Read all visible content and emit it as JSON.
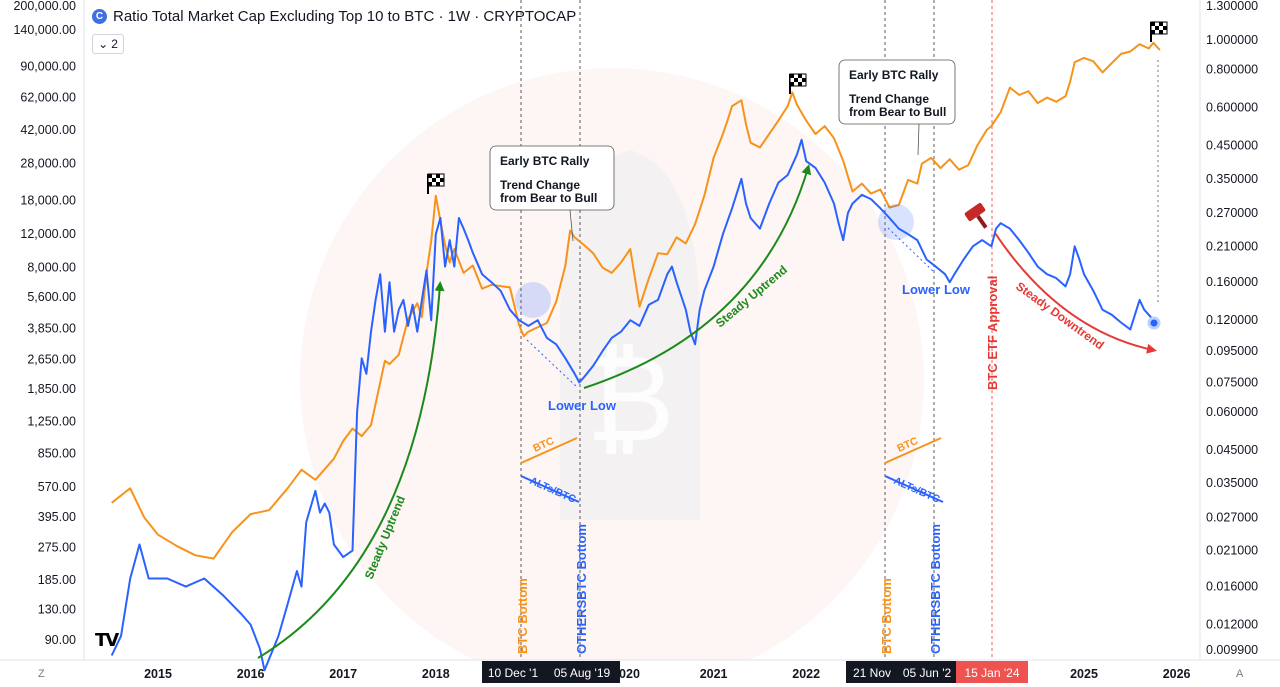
{
  "header": {
    "title": "Ratio Total Market Cap Excluding Top 10 to BTC · 1W · CRYPTOCAP",
    "collapse_label": "2",
    "icon_glyph": "C"
  },
  "corner_left": "Z",
  "corner_right": "A",
  "logo_text": "TV",
  "colors": {
    "btc": "#f7931a",
    "alts": "#2962ff",
    "green": "#1b8a1b",
    "red": "#e53935",
    "etf_line": "#e53935"
  },
  "chart_data": {
    "type": "line",
    "title": "Ratio Total Market Cap Excluding Top 10 to BTC · 1W · CRYPTOCAP",
    "x_ticks": [
      "2015",
      "2016",
      "2017",
      "2018",
      "2020",
      "2021",
      "2022",
      "2025",
      "2026"
    ],
    "left_axis_ticks": [
      "200,000.00",
      "140,000.00",
      "90,000.00",
      "62,000.00",
      "42,000.00",
      "28,000.00",
      "18,000.00",
      "12,000.00",
      "8,000.00",
      "5,600.00",
      "3,850.00",
      "2,650.00",
      "1,850.00",
      "1,250.00",
      "850.00",
      "570.00",
      "395.00",
      "275.00",
      "185.00",
      "130.00",
      "90.00"
    ],
    "right_axis_ticks": [
      "1.300000",
      "1.000000",
      "0.800000",
      "0.600000",
      "0.450000",
      "0.350000",
      "0.270000",
      "0.210000",
      "0.160000",
      "0.120000",
      "0.095000",
      "0.075000",
      "0.060000",
      "0.045000",
      "0.035000",
      "0.027000",
      "0.021000",
      "0.016000",
      "0.012000",
      "0.009900"
    ],
    "time_labels": [
      {
        "text": "10 Dec '1",
        "style": "dark"
      },
      {
        "text": "05 Aug '19",
        "style": "dark"
      },
      {
        "text": "21 Nov",
        "style": "dark"
      },
      {
        "text": "05 Jun '2",
        "style": "dark"
      },
      {
        "text": "15 Jan '24",
        "style": "red"
      }
    ],
    "series": [
      {
        "name": "BTC",
        "axis": "left",
        "points": [
          [
            2014.5,
            470
          ],
          [
            2014.7,
            560
          ],
          [
            2014.85,
            395
          ],
          [
            2015.0,
            320
          ],
          [
            2015.2,
            280
          ],
          [
            2015.4,
            250
          ],
          [
            2015.6,
            240
          ],
          [
            2015.8,
            330
          ],
          [
            2016.0,
            410
          ],
          [
            2016.2,
            430
          ],
          [
            2016.4,
            560
          ],
          [
            2016.55,
            700
          ],
          [
            2016.7,
            620
          ],
          [
            2016.9,
            800
          ],
          [
            2017.0,
            990
          ],
          [
            2017.1,
            1150
          ],
          [
            2017.2,
            1050
          ],
          [
            2017.3,
            1200
          ],
          [
            2017.4,
            2000
          ],
          [
            2017.45,
            2600
          ],
          [
            2017.5,
            2500
          ],
          [
            2017.6,
            2800
          ],
          [
            2017.7,
            4300
          ],
          [
            2017.8,
            5200
          ],
          [
            2017.85,
            4400
          ],
          [
            2017.9,
            7500
          ],
          [
            2017.95,
            11000
          ],
          [
            2018.0,
            19000
          ],
          [
            2018.05,
            14000
          ],
          [
            2018.1,
            10500
          ],
          [
            2018.15,
            8500
          ],
          [
            2018.2,
            10000
          ],
          [
            2018.3,
            7500
          ],
          [
            2018.4,
            8200
          ],
          [
            2018.5,
            6200
          ],
          [
            2018.6,
            6500
          ],
          [
            2018.7,
            6400
          ],
          [
            2018.8,
            6300
          ],
          [
            2018.9,
            4000
          ],
          [
            2018.95,
            3500
          ],
          [
            2019.0,
            3700
          ],
          [
            2019.2,
            4100
          ],
          [
            2019.3,
            5300
          ],
          [
            2019.4,
            8200
          ],
          [
            2019.45,
            12500
          ],
          [
            2019.5,
            11500
          ],
          [
            2019.6,
            10500
          ],
          [
            2019.7,
            9500
          ],
          [
            2019.8,
            8000
          ],
          [
            2019.9,
            7500
          ],
          [
            2020.0,
            8500
          ],
          [
            2020.1,
            10000
          ],
          [
            2020.2,
            5000
          ],
          [
            2020.3,
            7000
          ],
          [
            2020.4,
            9500
          ],
          [
            2020.5,
            9400
          ],
          [
            2020.6,
            11500
          ],
          [
            2020.7,
            10700
          ],
          [
            2020.8,
            13500
          ],
          [
            2020.9,
            19000
          ],
          [
            2021.0,
            30000
          ],
          [
            2021.1,
            40000
          ],
          [
            2021.15,
            47000
          ],
          [
            2021.2,
            56000
          ],
          [
            2021.3,
            60000
          ],
          [
            2021.35,
            45000
          ],
          [
            2021.4,
            36000
          ],
          [
            2021.5,
            34000
          ],
          [
            2021.6,
            40000
          ],
          [
            2021.7,
            47000
          ],
          [
            2021.8,
            56000
          ],
          [
            2021.85,
            66000
          ],
          [
            2021.9,
            57000
          ],
          [
            2022.0,
            47000
          ],
          [
            2022.1,
            40000
          ],
          [
            2022.2,
            44000
          ],
          [
            2022.3,
            38000
          ],
          [
            2022.4,
            29000
          ],
          [
            2022.5,
            20000
          ],
          [
            2022.6,
            22000
          ],
          [
            2022.7,
            19500
          ],
          [
            2022.8,
            20500
          ],
          [
            2022.9,
            16500
          ],
          [
            2023.0,
            17000
          ],
          [
            2023.1,
            23000
          ],
          [
            2023.2,
            22000
          ],
          [
            2023.25,
            28000
          ],
          [
            2023.35,
            30000
          ],
          [
            2023.45,
            26500
          ],
          [
            2023.55,
            29500
          ],
          [
            2023.65,
            26000
          ],
          [
            2023.75,
            27500
          ],
          [
            2023.85,
            35000
          ],
          [
            2023.95,
            42000
          ],
          [
            2024.0,
            44000
          ],
          [
            2024.1,
            52000
          ],
          [
            2024.2,
            70000
          ],
          [
            2024.3,
            64000
          ],
          [
            2024.4,
            67000
          ],
          [
            2024.5,
            58000
          ],
          [
            2024.6,
            62000
          ],
          [
            2024.7,
            59000
          ],
          [
            2024.8,
            63000
          ],
          [
            2024.85,
            75000
          ],
          [
            2024.9,
            95000
          ],
          [
            2025.0,
            100000
          ],
          [
            2025.1,
            96000
          ],
          [
            2025.2,
            84000
          ],
          [
            2025.3,
            94000
          ],
          [
            2025.4,
            105000
          ],
          [
            2025.5,
            108000
          ],
          [
            2025.6,
            118000
          ],
          [
            2025.7,
            112000
          ],
          [
            2025.75,
            120000
          ],
          [
            2025.82,
            110000
          ]
        ]
      },
      {
        "name": "ALTs/BTC",
        "axis": "right",
        "points": [
          [
            2014.5,
            0.0095
          ],
          [
            2014.6,
            0.011
          ],
          [
            2014.7,
            0.017
          ],
          [
            2014.8,
            0.022
          ],
          [
            2014.9,
            0.017
          ],
          [
            2015.1,
            0.017
          ],
          [
            2015.3,
            0.016
          ],
          [
            2015.5,
            0.017
          ],
          [
            2015.7,
            0.015
          ],
          [
            2015.9,
            0.013
          ],
          [
            2016.0,
            0.012
          ],
          [
            2016.1,
            0.01
          ],
          [
            2016.15,
            0.0085
          ],
          [
            2016.3,
            0.011
          ],
          [
            2016.4,
            0.014
          ],
          [
            2016.5,
            0.018
          ],
          [
            2016.55,
            0.016
          ],
          [
            2016.6,
            0.026
          ],
          [
            2016.7,
            0.033
          ],
          [
            2016.75,
            0.028
          ],
          [
            2016.8,
            0.03
          ],
          [
            2016.85,
            0.028
          ],
          [
            2016.9,
            0.022
          ],
          [
            2017.0,
            0.02
          ],
          [
            2017.1,
            0.021
          ],
          [
            2017.15,
            0.06
          ],
          [
            2017.2,
            0.09
          ],
          [
            2017.25,
            0.08
          ],
          [
            2017.3,
            0.11
          ],
          [
            2017.35,
            0.14
          ],
          [
            2017.4,
            0.17
          ],
          [
            2017.45,
            0.11
          ],
          [
            2017.5,
            0.16
          ],
          [
            2017.55,
            0.11
          ],
          [
            2017.6,
            0.13
          ],
          [
            2017.65,
            0.14
          ],
          [
            2017.7,
            0.115
          ],
          [
            2017.75,
            0.135
          ],
          [
            2017.8,
            0.11
          ],
          [
            2017.85,
            0.14
          ],
          [
            2017.9,
            0.175
          ],
          [
            2017.95,
            0.12
          ],
          [
            2018.0,
            0.23
          ],
          [
            2018.05,
            0.26
          ],
          [
            2018.1,
            0.18
          ],
          [
            2018.15,
            0.22
          ],
          [
            2018.2,
            0.18
          ],
          [
            2018.25,
            0.26
          ],
          [
            2018.3,
            0.24
          ],
          [
            2018.35,
            0.22
          ],
          [
            2018.4,
            0.2
          ],
          [
            2018.5,
            0.17
          ],
          [
            2018.6,
            0.16
          ],
          [
            2018.7,
            0.15
          ],
          [
            2018.8,
            0.13
          ],
          [
            2018.9,
            0.12
          ],
          [
            2019.0,
            0.115
          ],
          [
            2019.1,
            0.12
          ],
          [
            2019.2,
            0.105
          ],
          [
            2019.3,
            0.1
          ],
          [
            2019.4,
            0.09
          ],
          [
            2019.5,
            0.08
          ],
          [
            2019.55,
            0.075
          ],
          [
            2019.6,
            0.078
          ],
          [
            2019.7,
            0.085
          ],
          [
            2019.8,
            0.095
          ],
          [
            2019.9,
            0.105
          ],
          [
            2020.0,
            0.11
          ],
          [
            2020.1,
            0.12
          ],
          [
            2020.2,
            0.115
          ],
          [
            2020.3,
            0.135
          ],
          [
            2020.4,
            0.14
          ],
          [
            2020.5,
            0.17
          ],
          [
            2020.55,
            0.18
          ],
          [
            2020.6,
            0.16
          ],
          [
            2020.7,
            0.13
          ],
          [
            2020.75,
            0.11
          ],
          [
            2020.8,
            0.1
          ],
          [
            2020.85,
            0.13
          ],
          [
            2020.9,
            0.15
          ],
          [
            2021.0,
            0.18
          ],
          [
            2021.1,
            0.23
          ],
          [
            2021.2,
            0.28
          ],
          [
            2021.3,
            0.35
          ],
          [
            2021.35,
            0.29
          ],
          [
            2021.4,
            0.26
          ],
          [
            2021.5,
            0.24
          ],
          [
            2021.6,
            0.29
          ],
          [
            2021.7,
            0.34
          ],
          [
            2021.8,
            0.36
          ],
          [
            2021.9,
            0.42
          ],
          [
            2021.95,
            0.47
          ],
          [
            2022.0,
            0.4
          ],
          [
            2022.1,
            0.38
          ],
          [
            2022.2,
            0.34
          ],
          [
            2022.3,
            0.29
          ],
          [
            2022.35,
            0.25
          ],
          [
            2022.4,
            0.22
          ],
          [
            2022.45,
            0.27
          ],
          [
            2022.5,
            0.29
          ],
          [
            2022.6,
            0.31
          ],
          [
            2022.7,
            0.3
          ],
          [
            2022.8,
            0.28
          ],
          [
            2022.9,
            0.26
          ],
          [
            2023.0,
            0.24
          ],
          [
            2023.1,
            0.23
          ],
          [
            2023.2,
            0.22
          ],
          [
            2023.3,
            0.19
          ],
          [
            2023.4,
            0.18
          ],
          [
            2023.5,
            0.17
          ],
          [
            2023.55,
            0.16
          ],
          [
            2023.6,
            0.17
          ],
          [
            2023.7,
            0.19
          ],
          [
            2023.8,
            0.21
          ],
          [
            2023.9,
            0.22
          ],
          [
            2024.0,
            0.21
          ],
          [
            2024.05,
            0.24
          ],
          [
            2024.1,
            0.25
          ],
          [
            2024.2,
            0.24
          ],
          [
            2024.3,
            0.22
          ],
          [
            2024.4,
            0.2
          ],
          [
            2024.5,
            0.18
          ],
          [
            2024.6,
            0.17
          ],
          [
            2024.7,
            0.165
          ],
          [
            2024.8,
            0.155
          ],
          [
            2024.85,
            0.17
          ],
          [
            2024.9,
            0.21
          ],
          [
            2024.95,
            0.19
          ],
          [
            2025.0,
            0.17
          ],
          [
            2025.1,
            0.15
          ],
          [
            2025.2,
            0.13
          ],
          [
            2025.3,
            0.125
          ],
          [
            2025.4,
            0.118
          ],
          [
            2025.5,
            0.112
          ],
          [
            2025.55,
            0.125
          ],
          [
            2025.6,
            0.14
          ],
          [
            2025.65,
            0.13
          ],
          [
            2025.7,
            0.125
          ],
          [
            2025.75,
            0.12
          ]
        ]
      }
    ],
    "annotations": [
      {
        "kind": "callout",
        "title": "Early BTC Rally",
        "body": [
          "Trend Change",
          "from Bear to Bull"
        ]
      },
      {
        "kind": "callout",
        "title": "Early BTC Rally",
        "body": [
          "Trend Change",
          "from Bear to Bull"
        ]
      },
      {
        "kind": "label",
        "text": "Lower Low",
        "color": "alts"
      },
      {
        "kind": "label",
        "text": "Lower Low",
        "color": "alts"
      },
      {
        "kind": "curve",
        "text": "Steady Uptrend",
        "color": "green"
      },
      {
        "kind": "curve",
        "text": "Steady Uptrend",
        "color": "green"
      },
      {
        "kind": "curve",
        "text": "Steady Downtrend",
        "color": "red"
      },
      {
        "kind": "vline",
        "text": "BTC Bottom",
        "color": "btc"
      },
      {
        "kind": "vline",
        "text": "OTHERSBTC Bottom",
        "color": "alts"
      },
      {
        "kind": "vline",
        "text": "BTC Bottom",
        "color": "btc"
      },
      {
        "kind": "vline",
        "text": "OTHERSBTC Bottom",
        "color": "alts"
      },
      {
        "kind": "vline",
        "text": "BTC ETF Approval",
        "color": "red"
      },
      {
        "kind": "legend",
        "btc": "BTC",
        "alts": "ALTs/BTC"
      },
      {
        "kind": "legend",
        "btc": "BTC",
        "alts": "ALTs/BTC"
      }
    ]
  }
}
